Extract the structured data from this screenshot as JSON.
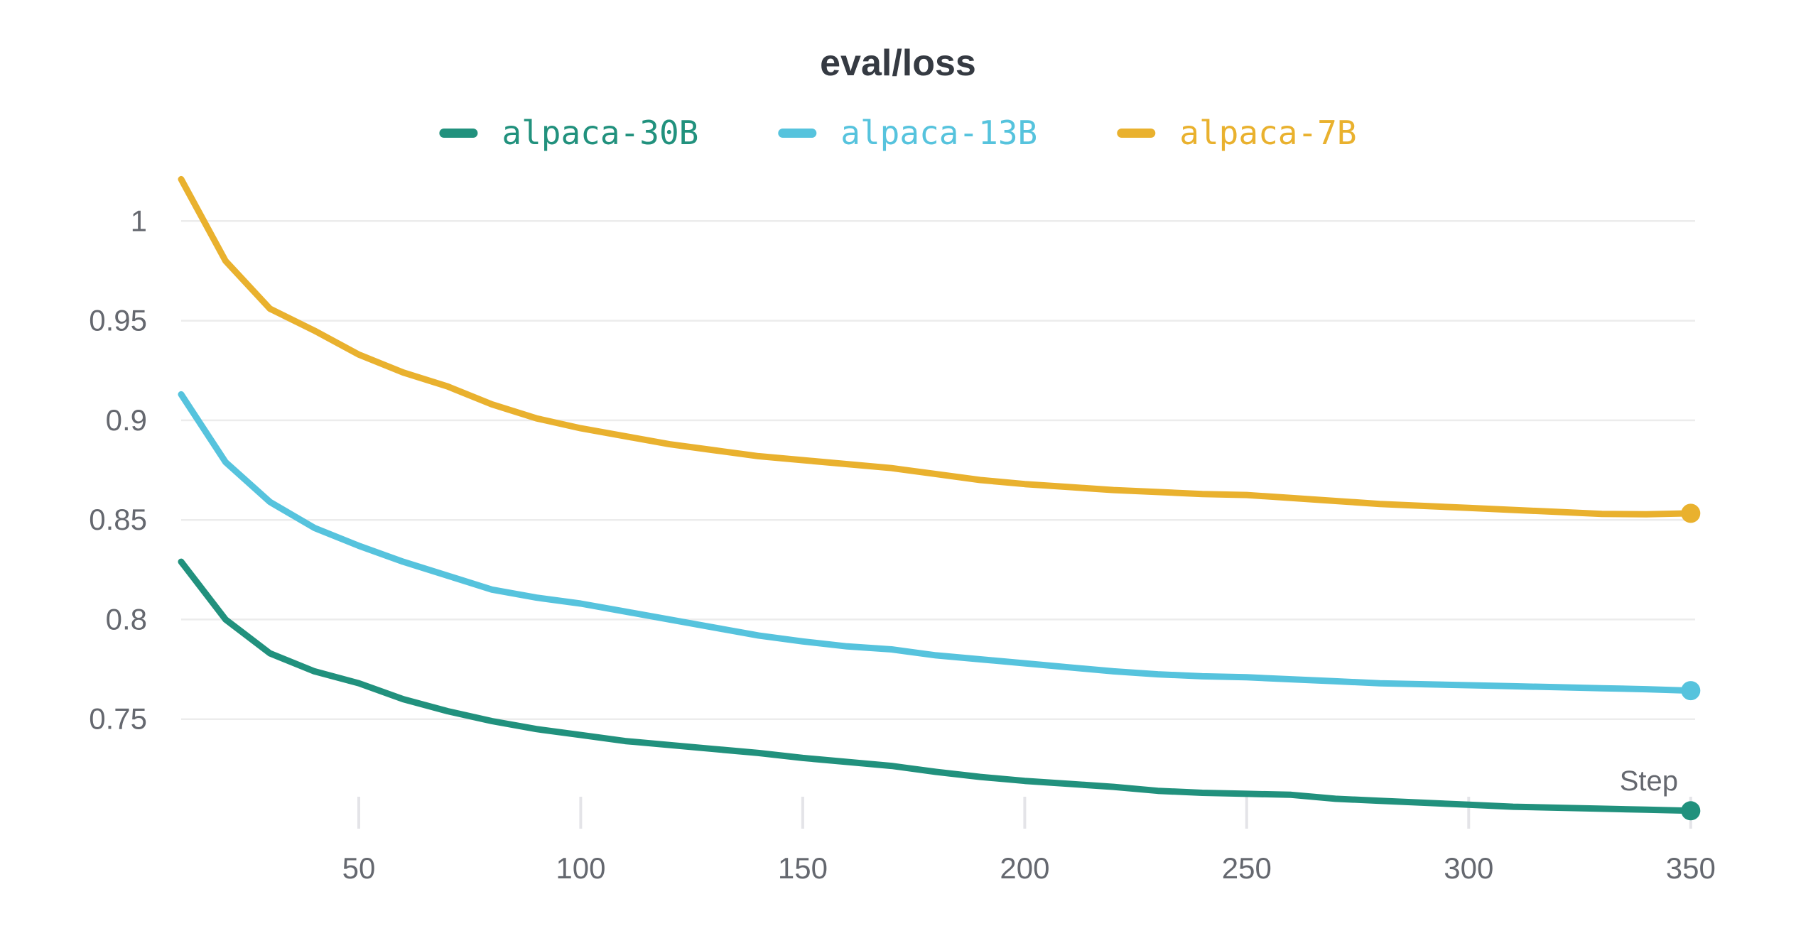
{
  "title": "eval/loss",
  "x_axis_label": "Step",
  "colors": {
    "background": "#ffffff",
    "gridline": "#ececec",
    "tick_mark": "#e4e4e8",
    "title_text": "#353a42",
    "axis_text": "#65686f",
    "series_teal": "#21917d",
    "series_cyan": "#56c3dd",
    "series_orange": "#e9b12e"
  },
  "chart_data": {
    "type": "line",
    "title": "eval/loss",
    "xlabel": "Step",
    "ylabel": "",
    "legend_position": "top-center",
    "grid": "horizontal-only",
    "end_markers": true,
    "x_range": [
      10,
      351
    ],
    "y_range": [
      0.695,
      1.0265
    ],
    "x_ticks": [
      50,
      100,
      150,
      200,
      250,
      300,
      350
    ],
    "y_ticks": [
      1,
      0.95,
      0.9,
      0.85,
      0.8,
      0.75
    ],
    "y_tick_labels": [
      "1",
      "0.95",
      "0.9",
      "0.85",
      "0.8",
      "0.75"
    ],
    "x": [
      10,
      20,
      30,
      40,
      50,
      60,
      70,
      80,
      90,
      100,
      110,
      120,
      130,
      140,
      150,
      160,
      170,
      180,
      190,
      200,
      210,
      220,
      230,
      240,
      250,
      260,
      270,
      280,
      290,
      300,
      310,
      320,
      330,
      340,
      350
    ],
    "series": [
      {
        "name": "alpaca-30B",
        "color": "#21917d",
        "values": [
          0.829,
          0.8,
          0.783,
          0.774,
          0.768,
          0.76,
          0.754,
          0.749,
          0.745,
          0.742,
          0.739,
          0.737,
          0.735,
          0.733,
          0.7305,
          0.7285,
          0.7265,
          0.7235,
          0.721,
          0.719,
          0.7175,
          0.716,
          0.714,
          0.713,
          0.7125,
          0.712,
          0.71,
          0.709,
          0.708,
          0.707,
          0.706,
          0.7055,
          0.705,
          0.7045,
          0.704
        ]
      },
      {
        "name": "alpaca-13B",
        "color": "#56c3dd",
        "values": [
          0.913,
          0.879,
          0.859,
          0.846,
          0.837,
          0.829,
          0.822,
          0.815,
          0.811,
          0.808,
          0.804,
          0.8,
          0.796,
          0.792,
          0.789,
          0.7865,
          0.785,
          0.782,
          0.78,
          0.778,
          0.776,
          0.774,
          0.7725,
          0.7715,
          0.771,
          0.77,
          0.769,
          0.768,
          0.7675,
          0.767,
          0.7665,
          0.766,
          0.7655,
          0.765,
          0.7643
        ]
      },
      {
        "name": "alpaca-7B",
        "color": "#e9b12e",
        "values": [
          1.021,
          0.98,
          0.956,
          0.945,
          0.933,
          0.924,
          0.917,
          0.908,
          0.901,
          0.896,
          0.892,
          0.888,
          0.885,
          0.882,
          0.88,
          0.878,
          0.876,
          0.873,
          0.87,
          0.868,
          0.8665,
          0.865,
          0.864,
          0.863,
          0.8625,
          0.861,
          0.8595,
          0.858,
          0.857,
          0.856,
          0.855,
          0.854,
          0.853,
          0.8528,
          0.8533
        ]
      }
    ]
  }
}
